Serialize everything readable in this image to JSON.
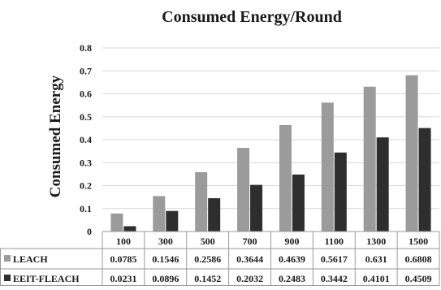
{
  "chart_data": {
    "type": "bar",
    "title": "Consumed Energy/Round",
    "xlabel": "",
    "ylabel": "Consumed Energy",
    "ylim": [
      0,
      0.8
    ],
    "yticks": [
      "0",
      "0.1",
      "0.2",
      "0.3",
      "0.4",
      "0.5",
      "0.6",
      "0.7",
      "0.8"
    ],
    "grid": true,
    "legend": "data-table-left",
    "categories": [
      "100",
      "300",
      "500",
      "700",
      "900",
      "1100",
      "1300",
      "1500"
    ],
    "series": [
      {
        "name": "LEACH",
        "color": "#9b9b9b",
        "values": [
          0.0785,
          0.1546,
          0.2586,
          0.3644,
          0.4639,
          0.5617,
          0.631,
          0.6808
        ],
        "labels": [
          "0.0785",
          "0.1546",
          "0.2586",
          "0.3644",
          "0.4639",
          "0.5617",
          "0.631",
          "0.6808"
        ]
      },
      {
        "name": "EEIT-FLEACH",
        "color": "#2e2e2e",
        "values": [
          0.0231,
          0.0896,
          0.1452,
          0.2032,
          0.2483,
          0.3442,
          0.4101,
          0.4509
        ],
        "labels": [
          "0.0231",
          "0.0896",
          "0.1452",
          "0.2032",
          "0.2483",
          "0.3442",
          "0.4101",
          "0.4509"
        ]
      }
    ]
  }
}
